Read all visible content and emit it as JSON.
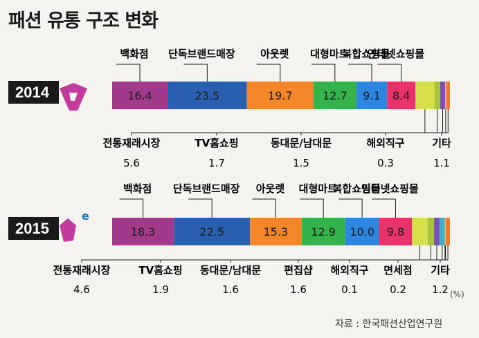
{
  "title": "패션 유통 구조 변화",
  "unit": "(%)",
  "source": "자료 : 한국패션산업연구원",
  "colors": {
    "백화점": "#a23a8c",
    "단독브랜드매장": "#2a5fb0",
    "아웃렛": "#f4862a",
    "대형마트": "#34b24c",
    "복합쇼핑몰": "#2d86e0",
    "인터넷쇼핑몰": "#e8336a",
    "전통재래시장": "#d6e04a",
    "TV홈쇼핑": "#a9c43a",
    "동대문/남대문": "#7b4fb5",
    "편집샵": "#3bb0c9",
    "해외직구": "#f2a8c8",
    "면세점": "#f7b24a",
    "기타": "#f07a2a"
  },
  "chart_data": [
    {
      "type": "bar",
      "year": "2014",
      "categories": [
        "백화점",
        "단독브랜드매장",
        "아웃렛",
        "대형마트",
        "복합쇼핑몰",
        "인터넷쇼핑몰",
        "전통재래시장",
        "TV홈쇼핑",
        "동대문/남대문",
        "해외직구",
        "기타"
      ],
      "values": [
        16.4,
        23.5,
        19.7,
        12.7,
        9.1,
        8.4,
        5.6,
        1.7,
        1.5,
        0.3,
        1.1
      ],
      "value_labels": [
        "16.4",
        "23.5",
        "19.7",
        "12.7",
        "9.1",
        "8.4",
        "5.6",
        "1.7",
        "1.5",
        "0.3",
        "1.1"
      ]
    },
    {
      "type": "bar",
      "year": "2015",
      "categories": [
        "백화점",
        "단독브랜드매장",
        "아웃렛",
        "대형마트",
        "복합쇼핑몰",
        "인터넷쇼핑몰",
        "전통재래시장",
        "TV홈쇼핑",
        "동대문/남대문",
        "편집샵",
        "해외직구",
        "면세점",
        "기타"
      ],
      "values": [
        18.3,
        22.5,
        15.3,
        12.9,
        10.0,
        9.8,
        4.6,
        1.9,
        1.6,
        1.6,
        0.1,
        0.2,
        1.2
      ],
      "value_labels": [
        "18.3",
        "22.5",
        "15.3",
        "12.9",
        "10.0",
        "9.8",
        "4.6",
        "1.9",
        "1.6",
        "1.6",
        "0.1",
        "0.2",
        "1.2"
      ]
    }
  ]
}
